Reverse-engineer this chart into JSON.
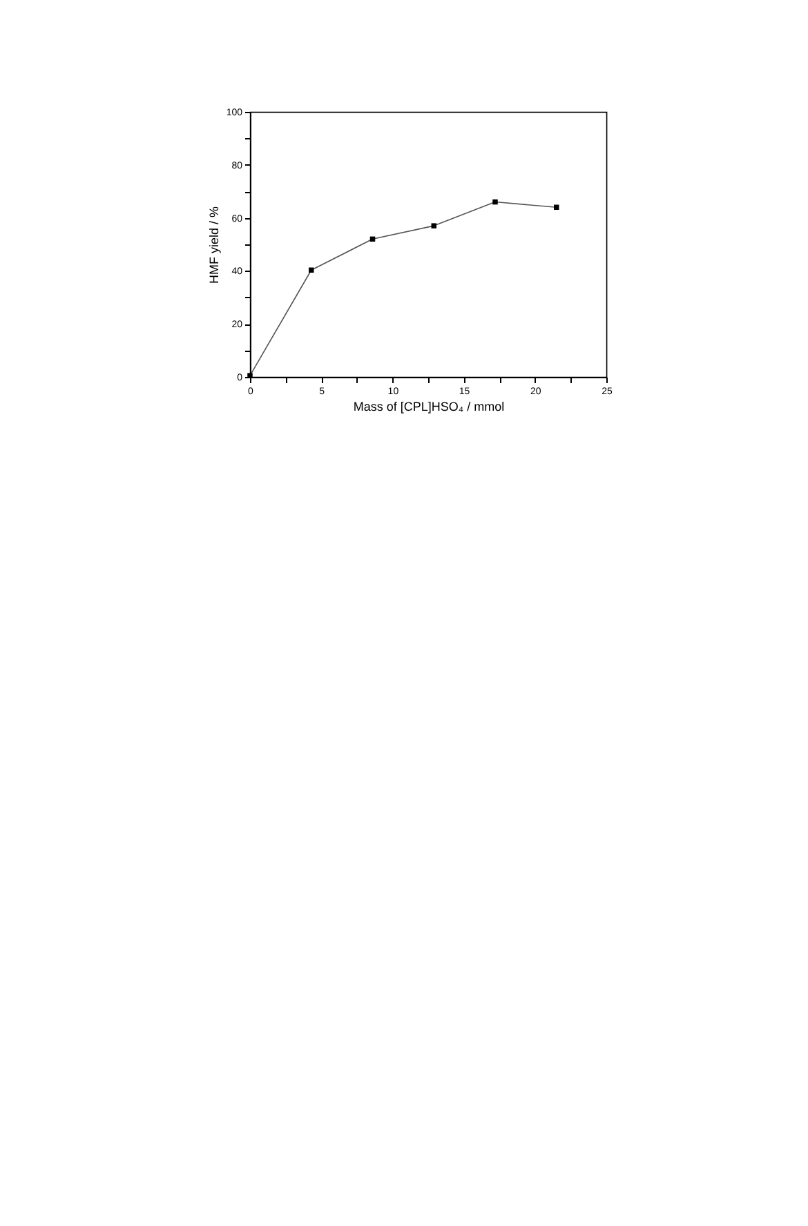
{
  "chart_data": {
    "type": "line",
    "xlabel": "Mass of [CPL]HSO₄ / mmol",
    "ylabel": "HMF yield / %",
    "x": [
      0,
      4.3,
      8.6,
      12.9,
      17.2,
      21.5
    ],
    "series": [
      {
        "color": "#000000",
        "values": [
          0.5,
          40.3,
          52,
          57,
          66,
          64
        ]
      }
    ],
    "xlim": [
      0,
      25
    ],
    "ylim": [
      0,
      100
    ],
    "xticks": [
      0,
      {
        "value": 2.5,
        "label": null
      },
      5,
      {
        "value": 7.5,
        "label": null
      },
      10,
      {
        "value": 12.5,
        "label": null
      },
      15,
      {
        "value": 17.5,
        "label": null
      },
      20,
      {
        "value": 22.5,
        "label": null
      },
      25
    ],
    "yticks": [
      0,
      {
        "value": 10,
        "label": null
      },
      20,
      {
        "value": 30,
        "label": null
      },
      40,
      {
        "value": 50,
        "label": null
      },
      60,
      {
        "value": 70,
        "label": null
      },
      80,
      {
        "value": 90,
        "label": null
      },
      100
    ],
    "marker": "square",
    "line_style": "solid",
    "grid": false
  }
}
